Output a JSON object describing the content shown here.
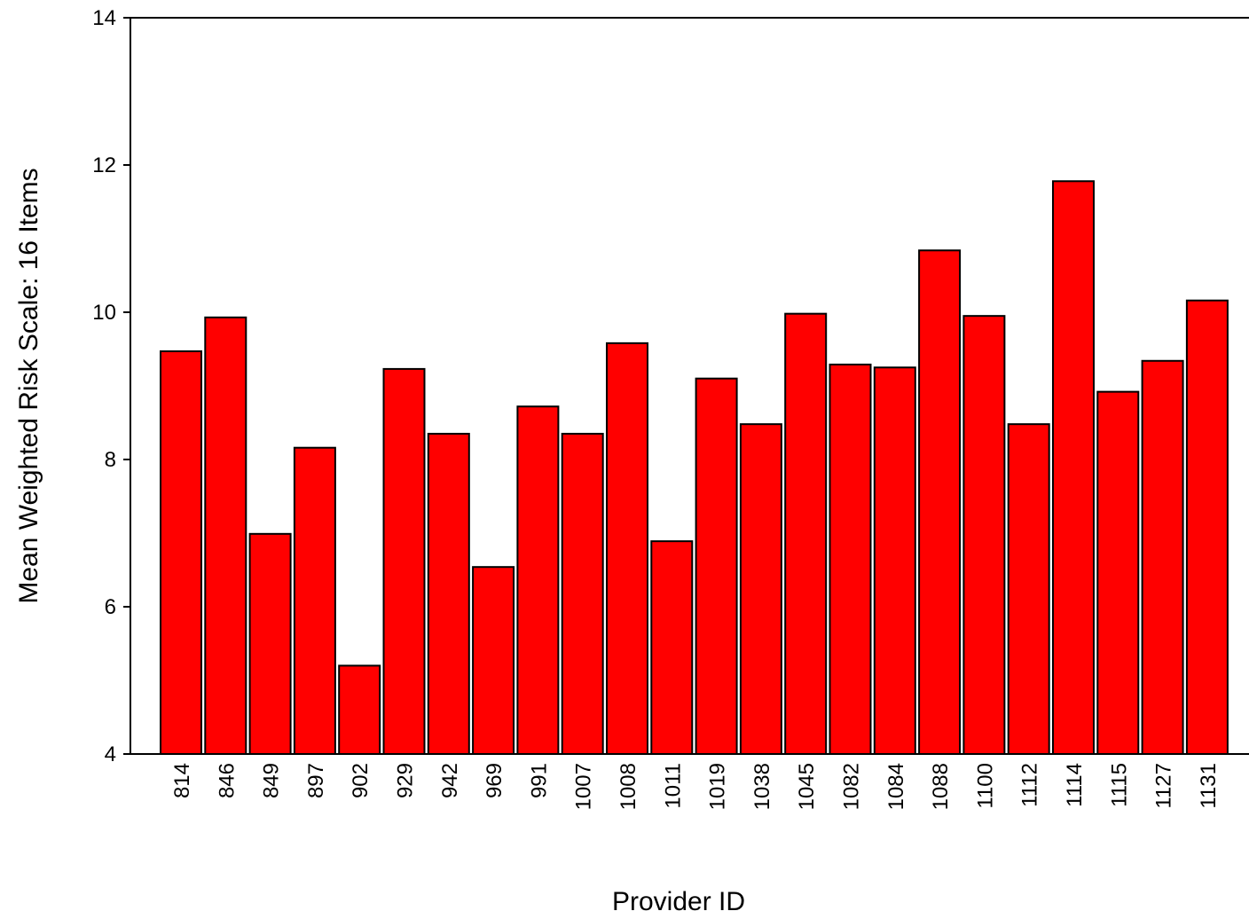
{
  "chart_data": {
    "type": "bar",
    "x_label": "Provider ID",
    "y_label": "Mean Weighted Risk Scale:  16 Items",
    "categories": [
      "814",
      "846",
      "849",
      "897",
      "902",
      "929",
      "942",
      "969",
      "991",
      "1007",
      "1008",
      "1011",
      "1019",
      "1038",
      "1045",
      "1082",
      "1084",
      "1088",
      "1100",
      "1112",
      "1114",
      "1115",
      "1127",
      "1131"
    ],
    "values": [
      9.47,
      9.93,
      6.99,
      8.16,
      5.2,
      9.23,
      8.35,
      6.54,
      8.72,
      8.35,
      9.58,
      6.89,
      9.1,
      8.48,
      9.98,
      9.29,
      9.25,
      10.84,
      9.95,
      8.48,
      11.78,
      8.92,
      9.34,
      10.16
    ],
    "color": "#ff0000",
    "ylim": [
      4,
      14
    ],
    "yticks": [
      4,
      6,
      8,
      10,
      12,
      14
    ],
    "grid": false
  }
}
